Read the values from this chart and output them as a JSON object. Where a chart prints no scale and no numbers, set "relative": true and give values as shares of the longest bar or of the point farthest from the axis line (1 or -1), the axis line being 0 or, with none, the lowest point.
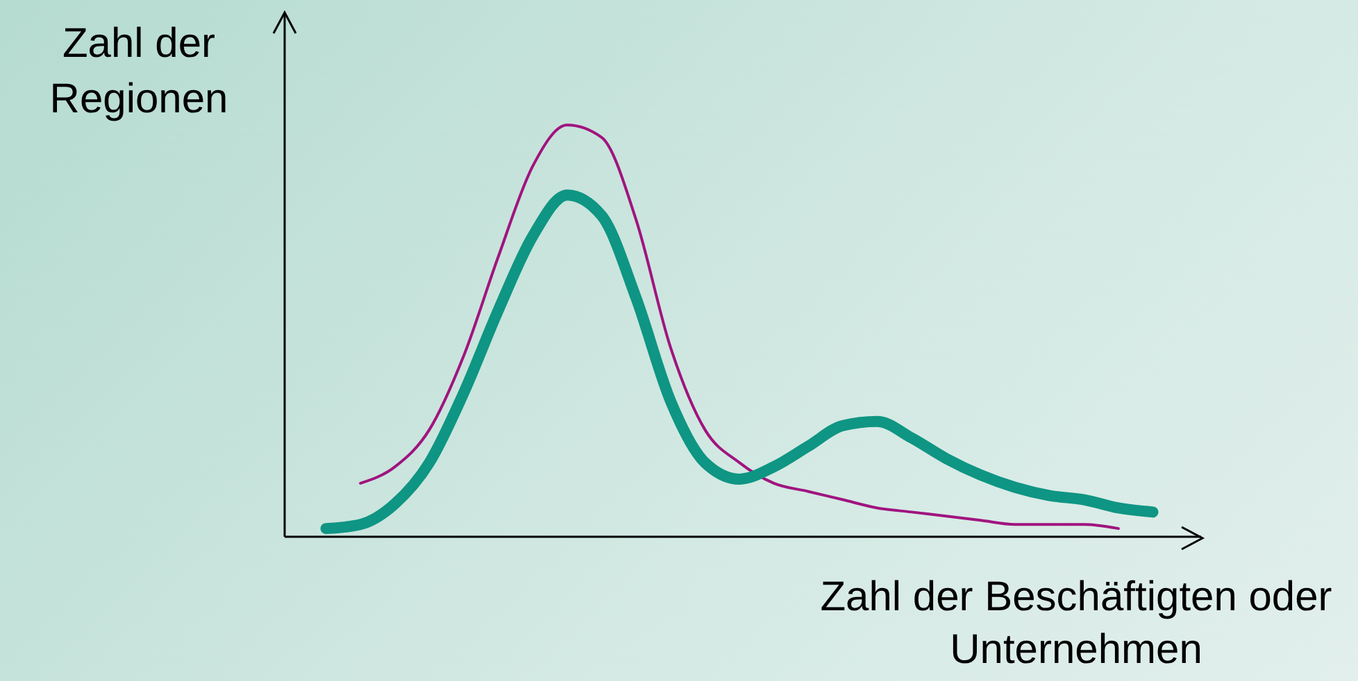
{
  "chart_data": {
    "type": "line",
    "relative": true,
    "xlabel": "Zahl der Beschäftigten oder Unternehmen",
    "ylabel": "Zahl der Regionen",
    "categories": [
      null,
      null,
      null,
      null,
      null,
      null,
      null,
      null,
      null,
      null,
      null,
      null,
      null,
      null,
      null,
      null,
      null,
      null,
      null,
      null,
      null,
      null,
      null,
      null,
      null
    ],
    "series": [
      {
        "color": "#a0147f",
        "values": [
          null,
          0.13,
          0.17,
          0.26,
          0.44,
          0.68,
          0.9,
          1,
          0.97,
          0.77,
          0.46,
          0.26,
          0.18,
          0.13,
          0.11,
          0.09,
          0.07,
          0.06,
          0.05,
          0.04,
          0.03,
          0.03,
          0.03,
          0.02,
          null
        ]
      },
      {
        "color": "#0f9583",
        "values": [
          0.02,
          0.03,
          0.08,
          0.18,
          0.35,
          0.55,
          0.73,
          0.83,
          0.78,
          0.58,
          0.33,
          0.18,
          0.14,
          0.17,
          0.22,
          0.27,
          0.28,
          0.24,
          0.19,
          0.15,
          0.12,
          0.1,
          0.09,
          0.07,
          0.06
        ]
      }
    ]
  }
}
